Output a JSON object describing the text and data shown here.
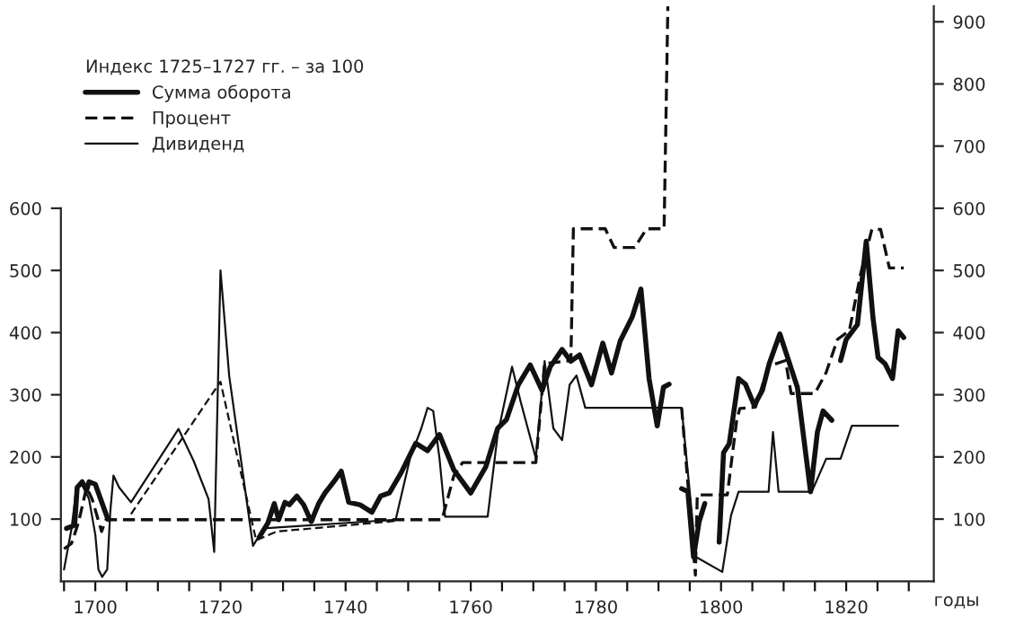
{
  "chart_data": {
    "type": "line",
    "legend_title": "Индекс 1725–1727 гг. – за 100",
    "xlabel": "годы",
    "legend": "top left",
    "grid": false,
    "marker": "none",
    "xlim": [
      1694.5,
      1834
    ],
    "ylim": [
      0,
      925
    ],
    "y2lim": [
      0,
      925
    ],
    "xticks": [
      {
        "value": 1695,
        "label": null
      },
      1700,
      {
        "value": 1705,
        "label": null
      },
      {
        "value": 1710,
        "label": null
      },
      {
        "value": 1715,
        "label": null
      },
      1720,
      {
        "value": 1725,
        "label": null
      },
      {
        "value": 1730,
        "label": null
      },
      {
        "value": 1735,
        "label": null
      },
      1740,
      {
        "value": 1745,
        "label": null
      },
      {
        "value": 1750,
        "label": null
      },
      {
        "value": 1755,
        "label": null
      },
      1760,
      {
        "value": 1765,
        "label": null
      },
      {
        "value": 1770,
        "label": null
      },
      {
        "value": 1775,
        "label": null
      },
      1780,
      {
        "value": 1785,
        "label": null
      },
      {
        "value": 1790,
        "label": null
      },
      {
        "value": 1795,
        "label": null
      },
      1800,
      {
        "value": 1805,
        "label": null
      },
      {
        "value": 1810,
        "label": null
      },
      {
        "value": 1815,
        "label": null
      },
      1820,
      {
        "value": 1825,
        "label": null
      },
      {
        "value": 1830,
        "label": null
      }
    ],
    "yticks": [
      100,
      200,
      300,
      400,
      500,
      600
    ],
    "y2ticks": [
      100,
      200,
      300,
      400,
      500,
      600,
      700,
      800,
      900
    ],
    "series": [
      {
        "name": "Сумма оборота",
        "color": "#111111",
        "line_style": "solid",
        "x": [
          1695.4,
          1696.7,
          1697.1,
          1697.9,
          1698.6,
          1699,
          1700,
          1700.5,
          1702,
          1712,
          1726.2,
          1727.6,
          1728.6,
          1729.3,
          1730.3,
          1731,
          1732.2,
          1733.3,
          1734.5,
          1735.7,
          1736.7,
          1738.1,
          1739.3,
          1740.5,
          1742.3,
          1744.2,
          1745.6,
          1747,
          1748.9,
          1751.2,
          1753.1,
          1755,
          1757.3,
          1760,
          1762.4,
          1764.3,
          1765.7,
          1767.6,
          1769.5,
          1771.4,
          1772.7,
          1774.6,
          1776,
          1777.4,
          1779.3,
          1781.1,
          1782.5,
          1783.9,
          1785.8,
          1787.2,
          1788.5,
          1789.8,
          1790.8,
          1791.7,
          1792.5,
          1793.7,
          1794.7,
          1795.6,
          1796.5,
          1797.4,
          1798.5,
          1799.7,
          1800.4,
          1801.3,
          1802.8,
          1803.9,
          1805.3,
          1806.6,
          1807.7,
          1809.4,
          1810.8,
          1812.2,
          1814.3,
          1815.4,
          1816.3,
          1817.7,
          1818.4,
          1819.1,
          1820,
          1821.8,
          1823.2,
          1824.3,
          1825.1,
          1826.2,
          1827.4,
          1828.3,
          1829.2
        ],
        "values": [
          85,
          90,
          151,
          160,
          146,
          160,
          156,
          142,
          100,
          null,
          71,
          94,
          125,
          99,
          127,
          123,
          137,
          123,
          96,
          125,
          142,
          160,
          177,
          127,
          123,
          111,
          137,
          142,
          175,
          222,
          210,
          236,
          179,
          142,
          184,
          246,
          260,
          316,
          348,
          307,
          345,
          373,
          354,
          364,
          316,
          383,
          335,
          387,
          425,
          470,
          326,
          250,
          312,
          317,
          null,
          149,
          144,
          39,
          96,
          125,
          null,
          63,
          207,
          221,
          326,
          317,
          283,
          307,
          350,
          398,
          355,
          312,
          144,
          240,
          274,
          259,
          null,
          355,
          389,
          413,
          547,
          422,
          360,
          350,
          326,
          403,
          392
        ]
      },
      {
        "name": "Процент",
        "color": "#111111",
        "line_style": "dashed",
        "x": [
          1695,
          1696.2,
          1697.3,
          1698.6,
          1699.5,
          1701,
          1701.7,
          1755.4,
          1757.3,
          1758.7,
          1770.4,
          1771.8,
          1776,
          1776.4,
          1781.5,
          1782.9,
          1786.2,
          1788.1,
          1790.9,
          1791.5,
          1792.5,
          1793.7,
          1795.9,
          1796.2,
          1801,
          1802.5,
          1803,
          1805.5,
          1807.6,
          1810.3,
          1811.2,
          1815,
          1816.8,
          1818.6,
          1820.5,
          1822.3,
          1824.1,
          1825.5,
          1826.9,
          1829.2
        ],
        "values": [
          52,
          61,
          94,
          151,
          132,
          80,
          99,
          99,
          170,
          191,
          191,
          350,
          355,
          567,
          567,
          537,
          537,
          567,
          567,
          925,
          null,
          279,
          10,
          139,
          139,
          259,
          278,
          280,
          346,
          355,
          302,
          302,
          336,
          389,
          403,
          494,
          566,
          566,
          504,
          504
        ]
      },
      {
        "name": "Дивиденд",
        "color": "#111111",
        "line_style": "solid",
        "x": [
          1695,
          1696.2,
          1697,
          1698,
          1699,
          1700,
          1700.5,
          1701.1,
          1701.9,
          1702.4,
          1702.9,
          1703.8,
          1705.7,
          1713.3,
          1715.7,
          1718.1,
          1719,
          1720,
          1721.4,
          1725.2,
          1726.9,
          1748,
          1750.3,
          1752.1,
          1753.1,
          1754,
          1755,
          1755.9,
          1762.7,
          1764.3,
          1766.6,
          1768,
          1770.4,
          1771.8,
          1773.2,
          1774.6,
          1775.8,
          1776.9,
          1778.3,
          1793.7,
          1796,
          1800.2,
          1801.6,
          1802.8,
          1807.6,
          1808.3,
          1809.2,
          1814.5,
          1816.8,
          1819.1,
          1820.9,
          1828.3
        ],
        "values": [
          19,
          85,
          151,
          155,
          132,
          75,
          19,
          7,
          19,
          113,
          170,
          151,
          127,
          245,
          194,
          132,
          47,
          500,
          330,
          57,
          85,
          99,
          198,
          246,
          279,
          274,
          198,
          104,
          104,
          236,
          345,
          288,
          198,
          354,
          246,
          227,
          316,
          331,
          279,
          279,
          39,
          15,
          106,
          144,
          144,
          240,
          144,
          144,
          197,
          197,
          250,
          250
        ]
      },
      {
        "color": "#111111",
        "line_style": "dashed",
        "x": [
          1705.7,
          1720,
          1725.7,
          1729,
          1748
        ],
        "values": [
          108,
          321,
          66,
          80,
          97
        ]
      }
    ]
  }
}
